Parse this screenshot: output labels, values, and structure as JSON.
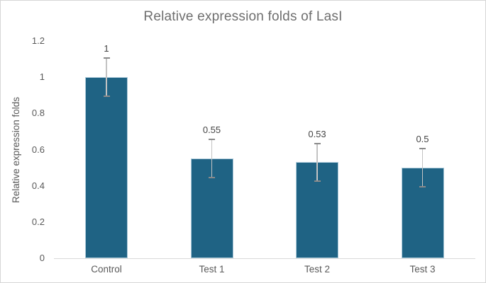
{
  "chart": {
    "title": "Relative expression folds of LasI",
    "ylabel": "Relative expression folds"
  },
  "chart_data": {
    "type": "bar",
    "title": "Relative expression folds of LasI",
    "xlabel": "",
    "ylabel": "Relative expression folds",
    "categories": [
      "Control",
      "Test 1",
      "Test 2",
      "Test 3"
    ],
    "values": [
      1,
      0.55,
      0.53,
      0.5
    ],
    "value_labels": [
      "1",
      "0.55",
      "0.53",
      "0.5"
    ],
    "error_bars": [
      0.105,
      0.105,
      0.105,
      0.105
    ],
    "ylim": [
      0,
      1.2
    ],
    "yticks": [
      0,
      0.2,
      0.4,
      0.6,
      0.8,
      1,
      1.2
    ],
    "ytick_labels": [
      "0",
      "0.2",
      "0.4",
      "0.6",
      "0.8",
      "1",
      "1.2"
    ],
    "grid": false,
    "legend": false,
    "colors": {
      "bar_fill": "#1f6384",
      "bar_edge": "#aecbdb",
      "error_line": "#c3c3c3",
      "error_cap": "#8a8a8a",
      "axis_line": "#d9d9d9",
      "title_text": "#6e6e6e",
      "tick_text": "#595959",
      "value_text": "#444444"
    }
  }
}
